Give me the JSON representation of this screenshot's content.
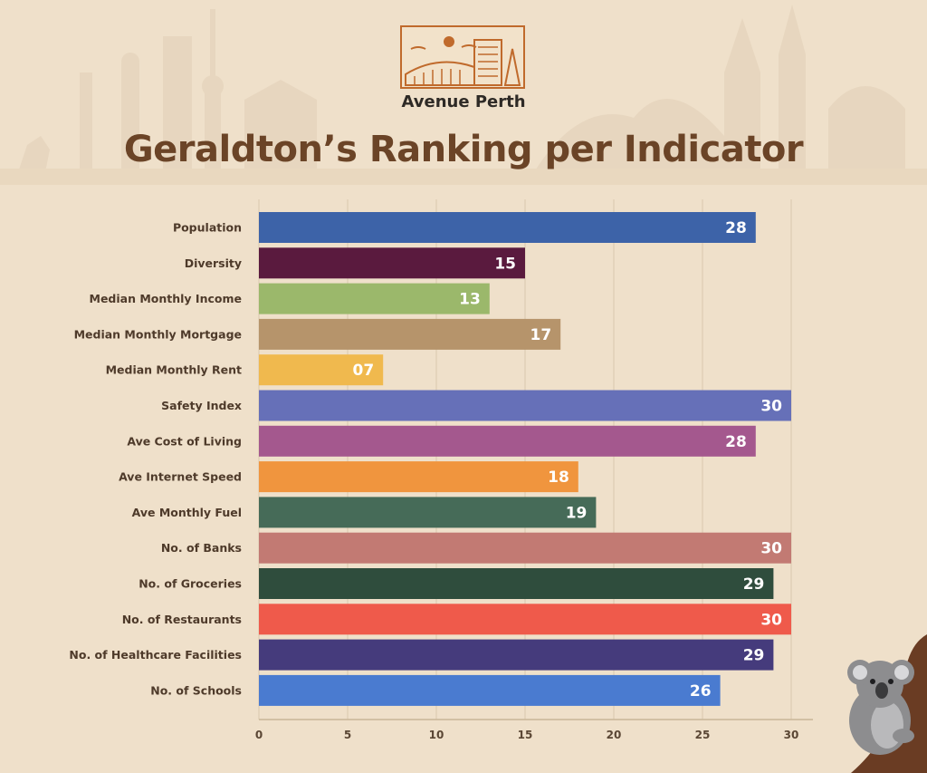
{
  "brand": {
    "name": "Avenue Perth"
  },
  "header": {
    "title": "Geraldton’s Ranking per Indicator"
  },
  "chart_data": {
    "type": "bar",
    "orientation": "horizontal",
    "title": "Geraldton’s Ranking per Indicator",
    "xlabel": "",
    "ylabel": "",
    "xlim": [
      0,
      30
    ],
    "grid": true,
    "ticks": [
      0,
      5,
      10,
      15,
      20,
      25,
      30
    ],
    "categories": [
      "Population",
      "Diversity",
      "Median Monthly Income",
      "Median Monthly Mortgage",
      "Median Monthly Rent",
      "Safety Index",
      "Ave Cost of Living",
      "Ave Internet Speed",
      "Ave Monthly Fuel",
      "No. of Banks",
      "No. of Groceries",
      "No. of Restaurants",
      "No. of Healthcare Facilities",
      "No. of Schools"
    ],
    "values": [
      28,
      15,
      13,
      17,
      7,
      30,
      28,
      18,
      19,
      30,
      29,
      30,
      29,
      26
    ],
    "value_labels": [
      "28",
      "15",
      "13",
      "17",
      "07",
      "30",
      "28",
      "18",
      "19",
      "30",
      "29",
      "30",
      "29",
      "26"
    ],
    "colors": [
      "#3d63a8",
      "#5a1a3e",
      "#9bb86b",
      "#b6946b",
      "#f0b94e",
      "#6670b8",
      "#a4588e",
      "#f0953e",
      "#466b58",
      "#c27a73",
      "#2f4d3d",
      "#ef5a4b",
      "#453b7c",
      "#4a7bd0"
    ]
  },
  "colors": {
    "title": "#6b4427",
    "background": "#efe0ca",
    "logo_accent": "#c06a2c"
  },
  "decorations": {
    "skyline": "city-skyline-silhouette",
    "mascot": "koala-icon"
  }
}
